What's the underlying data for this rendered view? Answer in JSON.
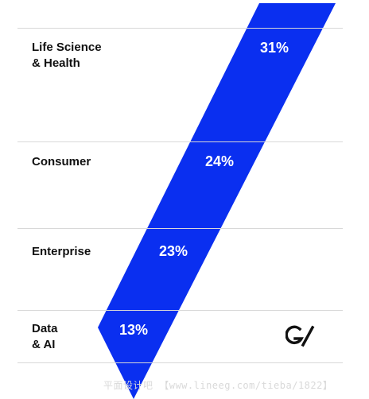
{
  "chart_data": {
    "type": "bar",
    "categories": [
      "Life Science\n& Health",
      "Consumer",
      "Enterprise",
      "Data\n& AI"
    ],
    "values": [
      31,
      24,
      23,
      13
    ],
    "value_labels": [
      "31%",
      "24%",
      "23%",
      "13%"
    ],
    "unit": "%",
    "colors": {
      "band": "#0a2ff0",
      "divider": "#d8d8d8",
      "text": "#111111"
    },
    "grid": false,
    "legend": "none"
  },
  "brand": {
    "logo_text": "G/"
  },
  "watermark": {
    "text": "平面设计吧 【www.lineeg.com/tieba/1822】"
  }
}
